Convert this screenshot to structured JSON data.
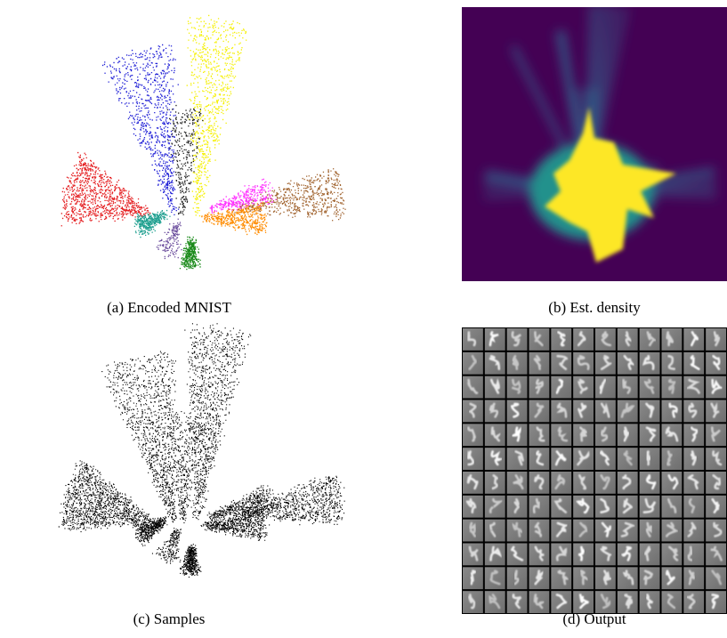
{
  "figure": {
    "panels": [
      {
        "caption": "(a) Encoded MNIST"
      },
      {
        "caption": "(b) Est. density"
      },
      {
        "caption": "(c) Samples"
      },
      {
        "caption": "(d) Output"
      }
    ]
  }
}
